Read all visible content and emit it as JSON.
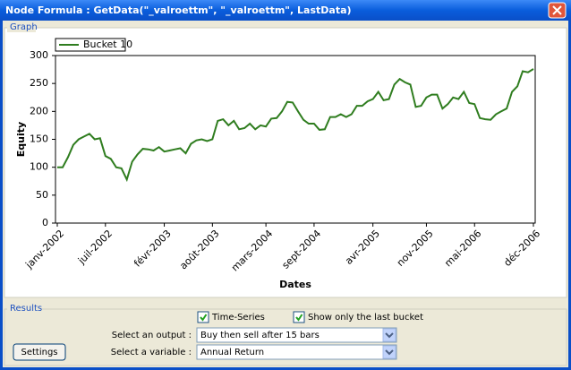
{
  "window": {
    "title": "Node Formula : GetData(\"_valroettm\", \"_valroettm\", LastData)"
  },
  "graph_group": "Graph",
  "chart_data": {
    "type": "line",
    "x_label": "Dates",
    "y_label": "Equity",
    "categories": [
      "janv-2002",
      null,
      null,
      null,
      null,
      null,
      null,
      null,
      null,
      "juil-2002",
      null,
      null,
      null,
      null,
      null,
      null,
      null,
      null,
      null,
      null,
      "févr-2003",
      null,
      null,
      null,
      null,
      null,
      null,
      null,
      null,
      "août-2003",
      null,
      null,
      null,
      null,
      null,
      null,
      null,
      null,
      null,
      "mars-2004",
      null,
      null,
      null,
      null,
      null,
      null,
      null,
      null,
      "sept-2004",
      null,
      null,
      null,
      null,
      null,
      null,
      null,
      null,
      null,
      null,
      "avr-2005",
      null,
      null,
      null,
      null,
      null,
      null,
      null,
      null,
      null,
      "nov-2005",
      null,
      null,
      null,
      null,
      null,
      null,
      null,
      null,
      "mai-2006",
      null,
      null,
      null,
      null,
      null,
      null,
      null,
      null,
      null,
      null,
      "déc-2006"
    ],
    "series": [
      {
        "name": "Bucket 10",
        "color": "#2f7d1f",
        "values": [
          100,
          100,
          118,
          140,
          150,
          155,
          160,
          150,
          152,
          120,
          115,
          100,
          98,
          78,
          110,
          123,
          133,
          132,
          130,
          136,
          128,
          130,
          132,
          134,
          125,
          142,
          148,
          150,
          147,
          150,
          183,
          186,
          175,
          183,
          168,
          170,
          178,
          168,
          175,
          173,
          187,
          188,
          200,
          217,
          216,
          200,
          185,
          178,
          178,
          167,
          168,
          190,
          190,
          195,
          190,
          195,
          210,
          210,
          218,
          222,
          235,
          220,
          222,
          248,
          258,
          252,
          248,
          208,
          210,
          225,
          230,
          230,
          205,
          213,
          225,
          222,
          235,
          215,
          213,
          188,
          186,
          185,
          195,
          200,
          205,
          235,
          245,
          272,
          270,
          276
        ]
      }
    ],
    "ylim": [
      0,
      300
    ],
    "yticks": [
      0,
      50,
      100,
      150,
      200,
      250,
      300
    ],
    "grid": false,
    "legend": "top-left"
  },
  "results": {
    "title": "Results",
    "time_series": {
      "label": "Time-Series",
      "checked": true
    },
    "last_bucket": {
      "label": "Show only the last bucket",
      "checked": true
    },
    "output": {
      "label": "Select an output :",
      "value": "Buy then sell after 15 bars"
    },
    "variable": {
      "label": "Select a variable :",
      "value": "Annual Return"
    },
    "settings": "Settings"
  }
}
